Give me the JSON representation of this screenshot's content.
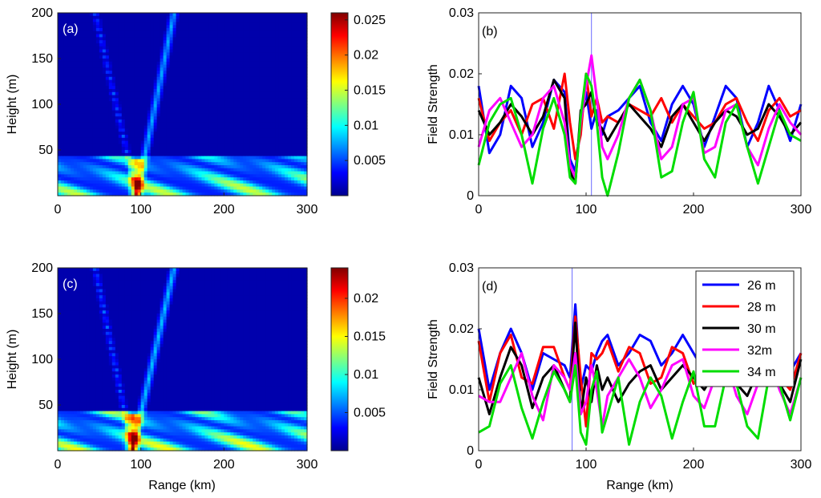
{
  "colormap_stops": [
    "#00008f",
    "#0000ff",
    "#0080ff",
    "#00ffff",
    "#80ff80",
    "#ffff00",
    "#ff8000",
    "#ff0000",
    "#800000"
  ],
  "line_colors": {
    "26": "#0000ff",
    "28": "#ff0000",
    "30": "#000000",
    "32": "#ff00ff",
    "34": "#00dd00"
  },
  "chart_data": [
    {
      "panel": "(a)",
      "type": "heatmap",
      "ylabel": "Height (m)",
      "xlabel": "",
      "xlim": [
        0,
        300
      ],
      "ylim": [
        0,
        200
      ],
      "x_ticks": [
        "0",
        "100",
        "200",
        "300"
      ],
      "y_ticks": [
        "50",
        "100",
        "150",
        "200"
      ],
      "colorbar": {
        "range": [
          0,
          0.026
        ],
        "ticks": [
          "0.005",
          "0.01",
          "0.015",
          "0.02",
          "0.025"
        ],
        "tick_values": [
          0.005,
          0.01,
          0.015,
          0.02,
          0.025
        ]
      },
      "features": {
        "focus_range_km": 95,
        "duct_top_m": 45,
        "left_beam_end_km": 45,
        "right_beam_end_km": 140
      }
    },
    {
      "panel": "(b)",
      "type": "line",
      "xlabel": "",
      "ylabel": "Field Strength",
      "xlim": [
        0,
        300
      ],
      "ylim": [
        0,
        0.03
      ],
      "x_ticks": [
        "0",
        "100",
        "200",
        "300"
      ],
      "y_ticks": [
        "0",
        "0.01",
        "0.02",
        "0.03"
      ],
      "marker_line_km": 105,
      "x": [
        0,
        10,
        20,
        30,
        40,
        50,
        60,
        70,
        80,
        85,
        90,
        95,
        100,
        105,
        110,
        115,
        120,
        130,
        140,
        150,
        160,
        170,
        180,
        190,
        200,
        210,
        220,
        230,
        240,
        250,
        260,
        270,
        280,
        290,
        300
      ],
      "series": [
        {
          "name": "26 m",
          "values": [
            0.018,
            0.007,
            0.01,
            0.018,
            0.016,
            0.008,
            0.012,
            0.019,
            0.017,
            0.006,
            0.004,
            0.012,
            0.017,
            0.011,
            0.014,
            0.01,
            0.013,
            0.014,
            0.016,
            0.018,
            0.012,
            0.009,
            0.015,
            0.018,
            0.015,
            0.008,
            0.013,
            0.018,
            0.016,
            0.008,
            0.012,
            0.018,
            0.014,
            0.009,
            0.015
          ]
        },
        {
          "name": "28 m",
          "values": [
            0.016,
            0.009,
            0.012,
            0.014,
            0.01,
            0.015,
            0.016,
            0.011,
            0.02,
            0.012,
            0.006,
            0.01,
            0.02,
            0.013,
            0.016,
            0.012,
            0.013,
            0.012,
            0.015,
            0.014,
            0.013,
            0.016,
            0.012,
            0.015,
            0.013,
            0.011,
            0.012,
            0.015,
            0.016,
            0.012,
            0.009,
            0.014,
            0.016,
            0.013,
            0.014
          ]
        },
        {
          "name": "30 m",
          "values": [
            0.014,
            0.01,
            0.012,
            0.015,
            0.013,
            0.01,
            0.013,
            0.019,
            0.016,
            0.004,
            0.002,
            0.014,
            0.015,
            0.017,
            0.012,
            0.011,
            0.009,
            0.012,
            0.015,
            0.013,
            0.011,
            0.008,
            0.013,
            0.015,
            0.012,
            0.009,
            0.012,
            0.014,
            0.013,
            0.01,
            0.011,
            0.015,
            0.013,
            0.01,
            0.012
          ]
        },
        {
          "name": "32m",
          "values": [
            0.008,
            0.014,
            0.016,
            0.012,
            0.008,
            0.01,
            0.016,
            0.018,
            0.012,
            0.005,
            0.003,
            0.012,
            0.018,
            0.023,
            0.016,
            0.008,
            0.006,
            0.01,
            0.016,
            0.019,
            0.014,
            0.006,
            0.008,
            0.015,
            0.016,
            0.007,
            0.008,
            0.014,
            0.015,
            0.008,
            0.005,
            0.011,
            0.015,
            0.012,
            0.01
          ]
        },
        {
          "name": "34 m",
          "values": [
            0.005,
            0.012,
            0.015,
            0.016,
            0.01,
            0.002,
            0.011,
            0.016,
            0.01,
            0.003,
            0.002,
            0.013,
            0.02,
            0.018,
            0.012,
            0.003,
            0.0,
            0.007,
            0.016,
            0.019,
            0.014,
            0.003,
            0.004,
            0.012,
            0.017,
            0.006,
            0.003,
            0.012,
            0.015,
            0.008,
            0.002,
            0.008,
            0.014,
            0.01,
            0.009
          ]
        }
      ]
    },
    {
      "panel": "(c)",
      "type": "heatmap",
      "ylabel": "Height (m)",
      "xlabel": "Range (km)",
      "xlim": [
        0,
        300
      ],
      "ylim": [
        0,
        200
      ],
      "x_ticks": [
        "0",
        "100",
        "200",
        "300"
      ],
      "y_ticks": [
        "50",
        "100",
        "150",
        "200"
      ],
      "colorbar": {
        "range": [
          0,
          0.024
        ],
        "ticks": [
          "0.005",
          "0.01",
          "0.015",
          "0.02"
        ],
        "tick_values": [
          0.005,
          0.01,
          0.015,
          0.02
        ]
      },
      "features": {
        "focus_range_km": 90,
        "duct_top_m": 42,
        "left_beam_end_km": 45,
        "right_beam_end_km": 140
      }
    },
    {
      "panel": "(d)",
      "type": "line",
      "xlabel": "Range (km)",
      "ylabel": "Field Strength",
      "xlim": [
        0,
        300
      ],
      "ylim": [
        0,
        0.03
      ],
      "x_ticks": [
        "0",
        "100",
        "200",
        "300"
      ],
      "y_ticks": [
        "0",
        "0.01",
        "0.02",
        "0.03"
      ],
      "marker_line_km": 87,
      "legend_position": "top-right",
      "x": [
        0,
        10,
        20,
        30,
        40,
        50,
        60,
        70,
        80,
        85,
        90,
        95,
        100,
        105,
        110,
        115,
        120,
        130,
        140,
        150,
        160,
        170,
        180,
        190,
        200,
        210,
        220,
        230,
        240,
        250,
        260,
        270,
        280,
        290,
        300
      ],
      "series": [
        {
          "name": "26 m",
          "values": [
            0.02,
            0.01,
            0.016,
            0.02,
            0.016,
            0.01,
            0.016,
            0.015,
            0.014,
            0.012,
            0.024,
            0.01,
            0.014,
            0.013,
            0.016,
            0.018,
            0.019,
            0.014,
            0.016,
            0.019,
            0.018,
            0.014,
            0.016,
            0.019,
            0.016,
            0.013,
            0.016,
            0.019,
            0.016,
            0.013,
            0.016,
            0.019,
            0.016,
            0.013,
            0.016
          ]
        },
        {
          "name": "28 m",
          "values": [
            0.018,
            0.008,
            0.016,
            0.019,
            0.012,
            0.011,
            0.017,
            0.017,
            0.012,
            0.01,
            0.022,
            0.012,
            0.004,
            0.016,
            0.015,
            0.016,
            0.018,
            0.013,
            0.017,
            0.016,
            0.011,
            0.012,
            0.017,
            0.016,
            0.011,
            0.013,
            0.016,
            0.018,
            0.012,
            0.011,
            0.016,
            0.017,
            0.012,
            0.01,
            0.016
          ]
        },
        {
          "name": "30 m",
          "values": [
            0.012,
            0.006,
            0.012,
            0.017,
            0.014,
            0.007,
            0.012,
            0.014,
            0.01,
            0.008,
            0.021,
            0.006,
            0.012,
            0.008,
            0.014,
            0.01,
            0.012,
            0.008,
            0.011,
            0.013,
            0.014,
            0.01,
            0.012,
            0.014,
            0.012,
            0.01,
            0.013,
            0.014,
            0.011,
            0.009,
            0.013,
            0.013,
            0.011,
            0.008,
            0.015
          ]
        },
        {
          "name": "32m",
          "values": [
            0.009,
            0.008,
            0.008,
            0.012,
            0.016,
            0.009,
            0.005,
            0.014,
            0.012,
            0.01,
            0.016,
            0.006,
            0.008,
            0.014,
            0.01,
            0.004,
            0.009,
            0.012,
            0.015,
            0.012,
            0.007,
            0.01,
            0.014,
            0.015,
            0.009,
            0.007,
            0.012,
            0.015,
            0.009,
            0.006,
            0.011,
            0.015,
            0.01,
            0.006,
            0.012
          ]
        },
        {
          "name": "34 m",
          "values": [
            0.003,
            0.004,
            0.011,
            0.014,
            0.007,
            0.002,
            0.008,
            0.013,
            0.01,
            0.008,
            0.014,
            0.003,
            0.001,
            0.01,
            0.013,
            0.003,
            0.006,
            0.012,
            0.001,
            0.008,
            0.012,
            0.009,
            0.002,
            0.008,
            0.013,
            0.004,
            0.004,
            0.012,
            0.011,
            0.004,
            0.002,
            0.012,
            0.011,
            0.005,
            0.012
          ]
        }
      ]
    }
  ]
}
